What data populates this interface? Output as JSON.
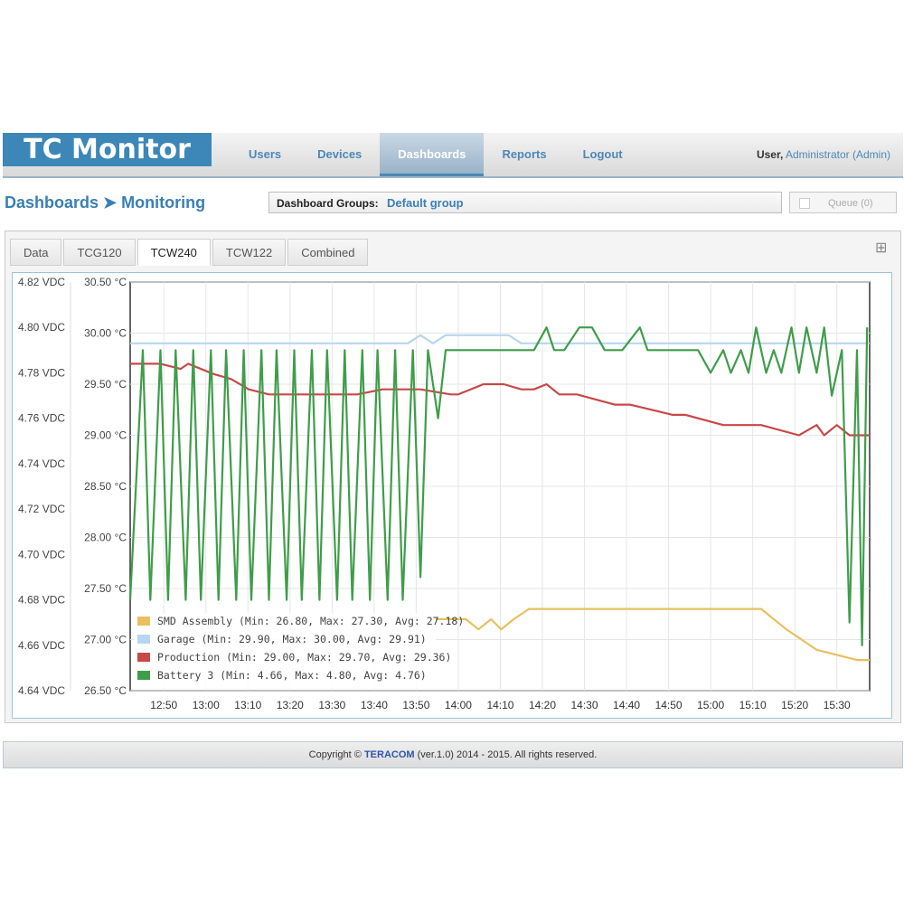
{
  "app": {
    "logo": "TC Monitor"
  },
  "nav": [
    "Users",
    "Devices",
    "Dashboards",
    "Reports",
    "Logout"
  ],
  "user": {
    "label": "User,",
    "name": "Administrator (Admin)"
  },
  "breadcrumb": "Dashboards ➤ Monitoring",
  "dashboard_groups": {
    "label": "Dashboard Groups:",
    "value": "Default group"
  },
  "queue": "Queue (0)",
  "tabs": [
    "Data",
    "TCG120",
    "TCW240",
    "TCW122",
    "Combined"
  ],
  "active_tab": "TCW240",
  "footer": {
    "prefix": "Copyright ©",
    "brand": "TERACOM",
    "suffix": "(ver.1.0) 2014 - 2015. All rights reserved."
  },
  "colors": {
    "smd": "#e8c060",
    "garage": "#b7d6f0",
    "production": "#c84848",
    "battery": "#3f9d4a",
    "accent": "#3c87b8"
  },
  "chart_data": {
    "type": "line",
    "x_ticks": [
      "12:50",
      "13:00",
      "13:10",
      "13:20",
      "13:30",
      "13:40",
      "13:50",
      "14:00",
      "14:10",
      "14:20",
      "14:30",
      "14:40",
      "14:50",
      "15:00",
      "15:10",
      "15:20",
      "15:30"
    ],
    "y_left_ticks": [
      "4.82 VDC",
      "4.80 VDC",
      "4.78 VDC",
      "4.76 VDC",
      "4.74 VDC",
      "4.72 VDC",
      "4.70 VDC",
      "4.68 VDC",
      "4.66 VDC",
      "4.64 VDC"
    ],
    "y_right_ticks": [
      "30.50 °C",
      "30.00 °C",
      "29.50 °C",
      "29.00 °C",
      "28.50 °C",
      "28.00 °C",
      "27.50 °C",
      "27.00 °C",
      "26.50 °C"
    ],
    "ylim_temp": [
      26.5,
      30.5
    ],
    "ylim_volt": [
      4.64,
      4.82
    ],
    "x_range_minutes": [
      12.7,
      15.63
    ],
    "legend": [
      "SMD Assembly (Min: 26.80, Max: 27.30, Avg: 27.18)",
      "Garage (Min: 29.90, Max: 30.00, Avg: 29.91)",
      "Production (Min: 29.00, Max: 29.70, Avg: 29.36)",
      "Battery 3 (Min: 4.66, Max: 4.80, Avg: 4.76)"
    ],
    "series": [
      {
        "name": "SMD Assembly",
        "axis": "temp",
        "x": [
          13.9,
          14.03,
          14.08,
          14.13,
          14.17,
          14.22,
          14.28,
          14.35,
          15.2,
          15.3,
          15.42,
          15.58,
          15.63
        ],
        "y": [
          27.2,
          27.2,
          27.1,
          27.2,
          27.1,
          27.2,
          27.3,
          27.3,
          27.3,
          27.1,
          26.9,
          26.8,
          26.8
        ]
      },
      {
        "name": "Garage",
        "axis": "temp",
        "x": [
          12.7,
          13.8,
          13.85,
          13.9,
          13.95,
          14.2,
          14.25,
          15.63
        ],
        "y": [
          29.9,
          29.9,
          29.98,
          29.9,
          29.98,
          29.98,
          29.9,
          29.9
        ]
      },
      {
        "name": "Production",
        "axis": "temp",
        "x": [
          12.7,
          12.82,
          12.9,
          12.93,
          13.03,
          13.1,
          13.17,
          13.25,
          13.3,
          13.48,
          13.6,
          13.7,
          13.85,
          13.97,
          14.0,
          14.1,
          14.18,
          14.25,
          14.3,
          14.35,
          14.4,
          14.47,
          14.62,
          14.68,
          14.85,
          14.9,
          15.05,
          15.1,
          15.2,
          15.35,
          15.42,
          15.45,
          15.5,
          15.55,
          15.63
        ],
        "y": [
          29.7,
          29.7,
          29.65,
          29.7,
          29.6,
          29.55,
          29.45,
          29.4,
          29.4,
          29.4,
          29.4,
          29.45,
          29.45,
          29.4,
          29.4,
          29.5,
          29.5,
          29.45,
          29.45,
          29.5,
          29.4,
          29.4,
          29.3,
          29.3,
          29.2,
          29.2,
          29.1,
          29.1,
          29.1,
          29.0,
          29.1,
          29.0,
          29.1,
          29.0,
          29.0
        ]
      },
      {
        "name": "Battery 3",
        "axis": "volt",
        "x": [
          12.7,
          12.75,
          12.78,
          12.82,
          12.85,
          12.88,
          12.92,
          12.95,
          12.98,
          13.02,
          13.05,
          13.08,
          13.12,
          13.15,
          13.18,
          13.22,
          13.25,
          13.28,
          13.32,
          13.35,
          13.38,
          13.42,
          13.45,
          13.48,
          13.52,
          13.55,
          13.58,
          13.62,
          13.65,
          13.68,
          13.72,
          13.75,
          13.78,
          13.82,
          13.85,
          13.88,
          13.92,
          13.95,
          14.0,
          14.3,
          14.35,
          14.38,
          14.42,
          14.48,
          14.53,
          14.58,
          14.65,
          14.72,
          14.75,
          14.8,
          14.95,
          15.0,
          15.05,
          15.08,
          15.12,
          15.15,
          15.18,
          15.22,
          15.25,
          15.28,
          15.32,
          15.35,
          15.38,
          15.42,
          15.45,
          15.48,
          15.52,
          15.55,
          15.58,
          15.6,
          15.62
        ],
        "y": [
          4.68,
          4.79,
          4.68,
          4.79,
          4.68,
          4.79,
          4.68,
          4.79,
          4.68,
          4.79,
          4.68,
          4.79,
          4.68,
          4.79,
          4.68,
          4.79,
          4.68,
          4.79,
          4.68,
          4.79,
          4.68,
          4.79,
          4.68,
          4.79,
          4.68,
          4.79,
          4.68,
          4.79,
          4.68,
          4.79,
          4.68,
          4.79,
          4.68,
          4.79,
          4.69,
          4.79,
          4.76,
          4.79,
          4.79,
          4.79,
          4.8,
          4.79,
          4.79,
          4.8,
          4.8,
          4.79,
          4.79,
          4.8,
          4.79,
          4.79,
          4.79,
          4.78,
          4.79,
          4.78,
          4.79,
          4.78,
          4.8,
          4.78,
          4.79,
          4.78,
          4.8,
          4.78,
          4.8,
          4.78,
          4.8,
          4.77,
          4.79,
          4.67,
          4.79,
          4.66,
          4.8
        ]
      }
    ]
  }
}
